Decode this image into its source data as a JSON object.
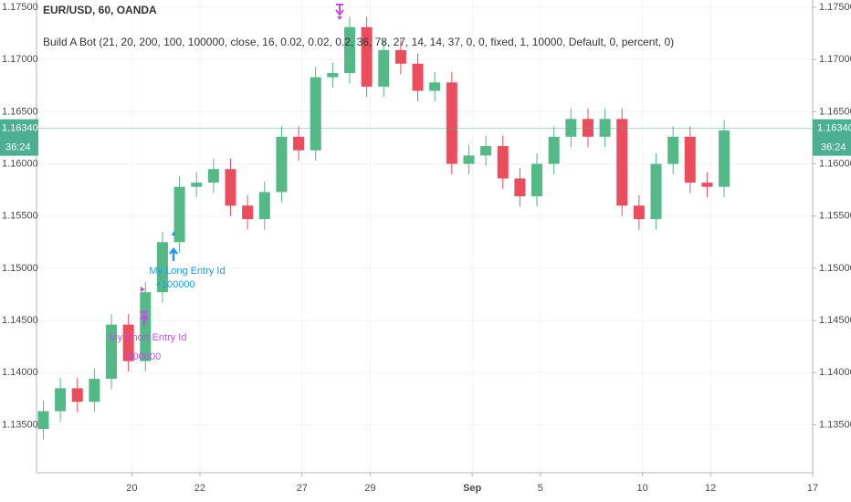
{
  "chart_data": {
    "type": "candlestick",
    "title": "EUR/USD, 60, OANDA",
    "subtitle": "Build A Bot (21, 20, 200, 100, 100000, close, 16, 0.02, 0.02, 0.2, 36, 78, 27, 14, 14, 37, 0, 0, fixed, 1, 10000, Default, 0, percent, 0)",
    "x": [
      -2.6,
      -2.1,
      -1.6,
      -1.1,
      -0.6,
      -0.1,
      0.4,
      0.9,
      1.4,
      1.9,
      2.4,
      2.9,
      3.4,
      3.9,
      4.4,
      4.9,
      5.4,
      5.9,
      6.4,
      6.9,
      7.4,
      7.9,
      8.4,
      8.9,
      9.4,
      9.9,
      10.4,
      10.9,
      11.4,
      11.9,
      12.4,
      12.9,
      13.4,
      13.9,
      14.4,
      14.9,
      15.4,
      15.9,
      16.4,
      16.9,
      17.4
    ],
    "open": [
      1.1346,
      1.1363,
      1.1385,
      1.1372,
      1.1394,
      1.1446,
      1.1411,
      1.1477,
      1.1525,
      1.1578,
      1.1582,
      1.1595,
      1.156,
      1.1547,
      1.1573,
      1.1626,
      1.1613,
      1.1683,
      1.1687,
      1.1731,
      1.1674,
      1.1709,
      1.1696,
      1.167,
      1.1678,
      1.16,
      1.1608,
      1.1617,
      1.1586,
      1.1569,
      1.16,
      1.1626,
      1.1643,
      1.1626,
      1.1643,
      1.156,
      1.1547,
      1.16,
      1.1626,
      1.1582,
      1.1578
    ],
    "high": [
      1.1373,
      1.1395,
      1.1395,
      1.1404,
      1.1456,
      1.1456,
      1.1487,
      1.1535,
      1.1588,
      1.1592,
      1.1605,
      1.1605,
      1.157,
      1.1583,
      1.1636,
      1.1636,
      1.1693,
      1.1697,
      1.1741,
      1.1741,
      1.1719,
      1.1719,
      1.1706,
      1.1688,
      1.1688,
      1.1618,
      1.1627,
      1.1627,
      1.1596,
      1.161,
      1.1636,
      1.1653,
      1.1653,
      1.1653,
      1.1653,
      1.157,
      1.161,
      1.1636,
      1.1636,
      1.1592,
      1.1642
    ],
    "low": [
      1.1336,
      1.1353,
      1.1362,
      1.1362,
      1.1384,
      1.1401,
      1.1401,
      1.1467,
      1.1515,
      1.1568,
      1.1572,
      1.155,
      1.1537,
      1.1537,
      1.1563,
      1.1603,
      1.1603,
      1.1673,
      1.1677,
      1.1664,
      1.1664,
      1.1686,
      1.166,
      1.166,
      1.159,
      1.159,
      1.1598,
      1.1576,
      1.1559,
      1.1559,
      1.159,
      1.1616,
      1.1616,
      1.1616,
      1.155,
      1.1537,
      1.1537,
      1.159,
      1.1572,
      1.1568,
      1.1568
    ],
    "close": [
      1.1363,
      1.1385,
      1.1372,
      1.1394,
      1.1446,
      1.1411,
      1.1477,
      1.1525,
      1.1578,
      1.1582,
      1.1595,
      1.156,
      1.1547,
      1.1573,
      1.1626,
      1.1613,
      1.1683,
      1.1687,
      1.1731,
      1.1674,
      1.1709,
      1.1696,
      1.167,
      1.1678,
      1.16,
      1.1608,
      1.1617,
      1.1586,
      1.1569,
      1.16,
      1.1626,
      1.1643,
      1.1626,
      1.1643,
      1.156,
      1.1547,
      1.16,
      1.1626,
      1.1582,
      1.1578,
      1.1632
    ],
    "up_color": "#53b987",
    "down_color": "#eb4d5c",
    "xlim": [
      -2.8,
      20.0
    ],
    "xticks": [
      {
        "value": 0,
        "label": "20"
      },
      {
        "value": 2,
        "label": "22"
      },
      {
        "value": 5,
        "label": "27"
      },
      {
        "value": 7,
        "label": "29"
      },
      {
        "value": 10,
        "label": "Sep"
      },
      {
        "value": 12,
        "label": "5"
      },
      {
        "value": 15,
        "label": "10"
      },
      {
        "value": 17,
        "label": "12"
      },
      {
        "value": 20,
        "label": "17"
      }
    ],
    "ylim": [
      1.1304,
      1.1757
    ],
    "yticks": [
      {
        "value": 1.135,
        "label": "1.13500"
      },
      {
        "value": 1.14,
        "label": "1.14000"
      },
      {
        "value": 1.145,
        "label": "1.14500"
      },
      {
        "value": 1.15,
        "label": "1.15000"
      },
      {
        "value": 1.155,
        "label": "1.15500"
      },
      {
        "value": 1.16,
        "label": "1.16000"
      },
      {
        "value": 1.165,
        "label": "1.16500"
      },
      {
        "value": 1.17,
        "label": "1.17000"
      },
      {
        "value": 1.175,
        "label": "1.17500"
      }
    ],
    "grid": true,
    "current_price": {
      "value": 1.1634,
      "label": "1.16340"
    },
    "countdown": "36:24",
    "annotations": [
      "My Long Entry Id",
      "+100000",
      "My Short Entry Id",
      "-100000"
    ]
  }
}
